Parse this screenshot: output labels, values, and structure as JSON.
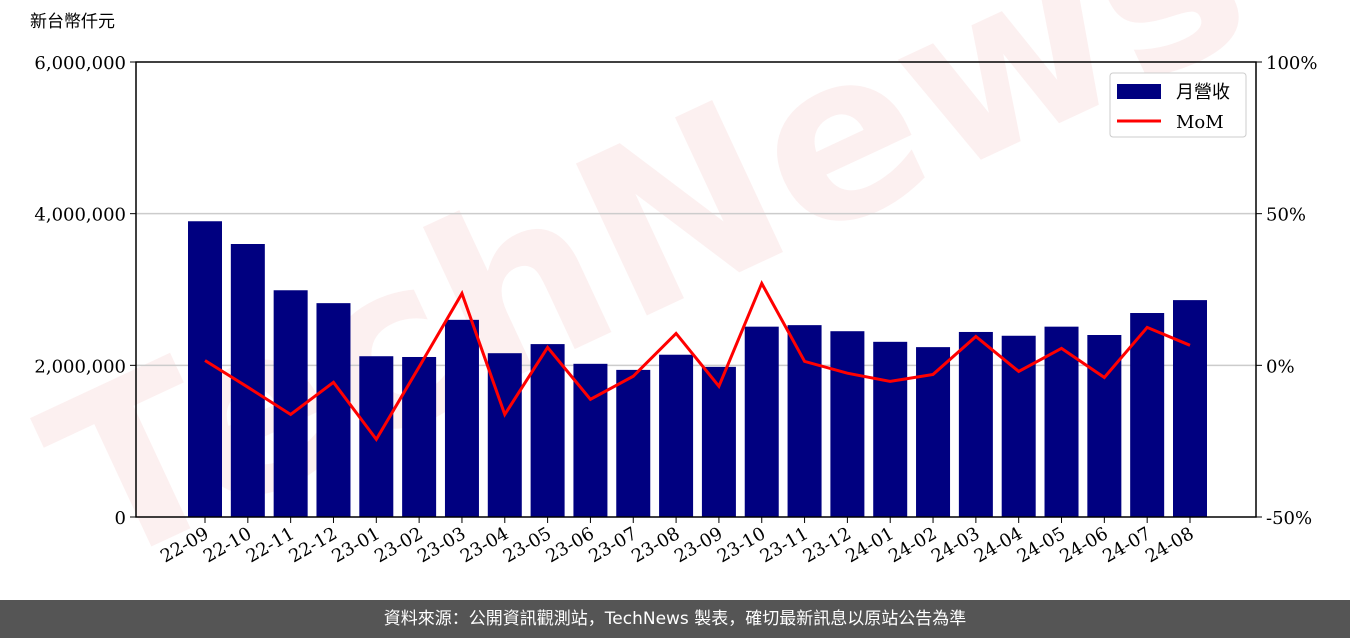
{
  "chart_data": {
    "type": "bar_line",
    "y_axis_label": "新台幣仟元",
    "watermark": "TechNews",
    "footer": "資料來源：公開資訊觀測站，TechNews 製表，確切最新訊息以原站公告為準",
    "categories": [
      "22-09",
      "22-10",
      "22-11",
      "22-12",
      "23-01",
      "23-02",
      "23-03",
      "23-04",
      "23-05",
      "23-06",
      "23-07",
      "23-08",
      "23-09",
      "23-10",
      "23-11",
      "23-12",
      "24-01",
      "24-02",
      "24-03",
      "24-04",
      "24-05",
      "24-06",
      "24-07",
      "24-08"
    ],
    "series": [
      {
        "name": "月營收",
        "type": "bar",
        "axis": "y",
        "color": "#000080",
        "values": [
          3900000,
          3600000,
          2990000,
          2820000,
          2120000,
          2110000,
          2600000,
          2160000,
          2280000,
          2020000,
          1940000,
          2140000,
          1980000,
          2510000,
          2530000,
          2450000,
          2310000,
          2240000,
          2440000,
          2390000,
          2510000,
          2400000,
          2690000,
          2860000
        ]
      },
      {
        "name": "MoM",
        "type": "line",
        "axis": "y2",
        "color": "#ff0000",
        "values": [
          1.6,
          -7.2,
          -16.2,
          -5.6,
          -24.4,
          -0.5,
          23.7,
          -16.2,
          5.9,
          -11.2,
          -3.6,
          10.5,
          -6.9,
          27,
          1.3,
          -2.6,
          -5.3,
          -3,
          9.5,
          -2,
          5.6,
          -4,
          12.5,
          6.6
        ]
      }
    ],
    "ylim": [
      0,
      6000000
    ],
    "yticks": [
      0,
      {
        "value": 2000000,
        "label": "2,000,000"
      },
      {
        "value": 4000000,
        "label": "4,000,000"
      },
      {
        "value": 6000000,
        "label": "6,000,000"
      }
    ],
    "y2lim": [
      -50,
      100
    ],
    "y2ticks": [
      {
        "value": -50,
        "label": "-50%"
      },
      {
        "value": 0,
        "label": "0%"
      },
      {
        "value": 50,
        "label": "50%"
      },
      {
        "value": 100,
        "label": "100%"
      }
    ],
    "grid": true,
    "legend": "upper right"
  }
}
